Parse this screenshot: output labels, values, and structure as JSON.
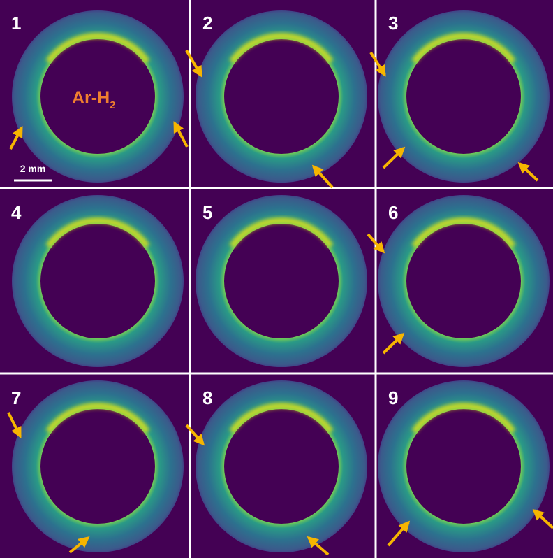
{
  "panels": [
    {
      "label": "1"
    },
    {
      "label": "2"
    },
    {
      "label": "3"
    },
    {
      "label": "4"
    },
    {
      "label": "5"
    },
    {
      "label": "6"
    },
    {
      "label": "7"
    },
    {
      "label": "8"
    },
    {
      "label": "9"
    }
  ],
  "annotations": {
    "gas_label": "Ar-H",
    "gas_subscript": "2",
    "scale_bar": "2 mm"
  }
}
